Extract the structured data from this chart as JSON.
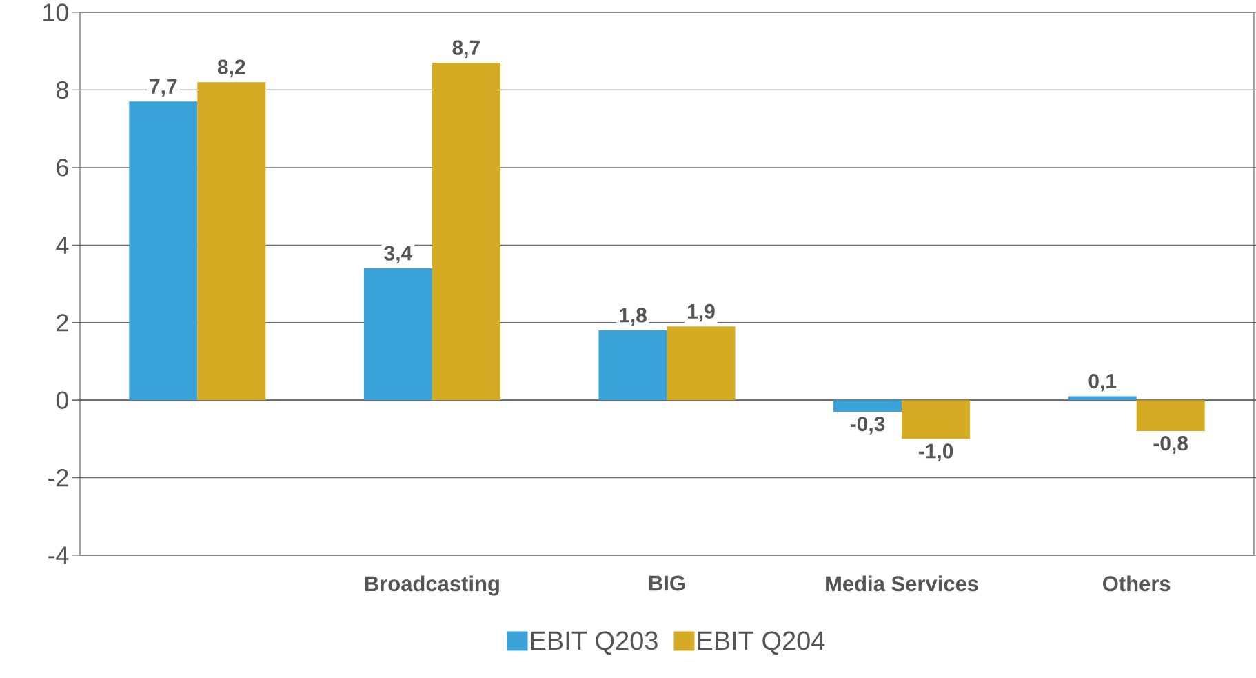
{
  "chart_data": {
    "type": "bar",
    "categories": [
      null,
      "Broadcasting",
      "BIG",
      "Media Services",
      "Others"
    ],
    "series": [
      {
        "name": "EBIT Q203",
        "color": "#3aa3d9",
        "values": [
          7.7,
          3.4,
          1.8,
          -0.3,
          0.1
        ],
        "value_labels": [
          "7,7",
          "3,4",
          "1,8",
          "-0,3",
          "0,1"
        ]
      },
      {
        "name": "EBIT Q204",
        "color": "#d5ab23",
        "values": [
          8.2,
          8.7,
          1.9,
          -1.0,
          -0.8
        ],
        "value_labels": [
          "8,2",
          "8,7",
          "1,9",
          "-1,0",
          "-0,8"
        ]
      }
    ],
    "ylim": [
      -4,
      10
    ],
    "yticks": [
      -4,
      -2,
      0,
      2,
      4,
      6,
      8,
      10
    ],
    "grid": "y",
    "legend": "bottom"
  }
}
